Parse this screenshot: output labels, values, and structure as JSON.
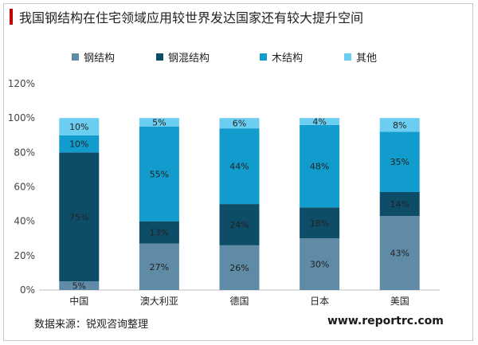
{
  "title": "我国钢结构在住宅领域应用较世界发达国家还有较大提升空间",
  "source": "数据来源：锐观咨询整理",
  "watermark": "www.reportrc.com",
  "colors": {
    "accent": "#c00000",
    "series": [
      "#5f8ba6",
      "#0e4d68",
      "#119ccd",
      "#6bcdf0"
    ]
  },
  "chart_data": {
    "type": "bar",
    "stacked": true,
    "categories": [
      "中国",
      "澳大利亚",
      "德国",
      "日本",
      "美国"
    ],
    "series": [
      {
        "name": "钢结构",
        "values": [
          5,
          27,
          26,
          30,
          43
        ]
      },
      {
        "name": "钢混结构",
        "values": [
          75,
          13,
          24,
          18,
          14
        ]
      },
      {
        "name": "木结构",
        "values": [
          10,
          55,
          44,
          48,
          35
        ]
      },
      {
        "name": "其他",
        "values": [
          10,
          5,
          6,
          4,
          8
        ]
      }
    ],
    "ylim": [
      0,
      120
    ],
    "yticks": [
      "0%",
      "20%",
      "40%",
      "60%",
      "80%",
      "100%",
      "120%"
    ],
    "data_labels": [
      [
        "5%",
        "27%",
        "26%",
        "30%",
        "43%"
      ],
      [
        "75%",
        "13%",
        "24%",
        "18%",
        "14%"
      ],
      [
        "10%",
        "55%",
        "44%",
        "48%",
        "35%"
      ],
      [
        "10%",
        "5%",
        "6%",
        "4%",
        "8%"
      ]
    ],
    "legend": "top",
    "grid": false
  }
}
